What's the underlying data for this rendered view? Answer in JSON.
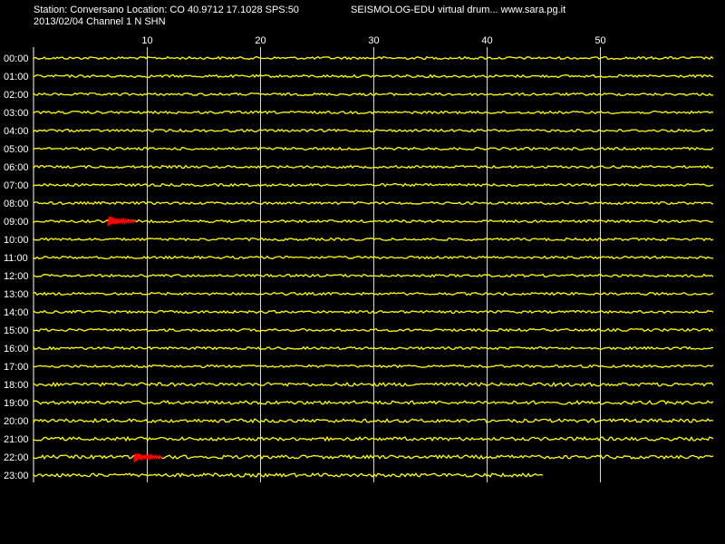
{
  "header": {
    "station_line": "Station: Conversano Location: CO 40.9712 17.1028 SPS:50",
    "date_line": "2013/02/04  Channel 1 N SHN",
    "brand_line": "SEISMOLOG-EDU virtual drum... www.sara.pg.it"
  },
  "colors": {
    "background": "#000000",
    "trace": "#ffff00",
    "event": "#ff0000",
    "grid": "#ffffff",
    "text": "#ffffff"
  },
  "chart_data": {
    "type": "line",
    "title": "",
    "xlabel": "",
    "ylabel": "",
    "x_range": [
      0,
      60
    ],
    "x_ticks": [
      10,
      20,
      30,
      40,
      50
    ],
    "grid": true,
    "rows": [
      "00:00",
      "01:00",
      "02:00",
      "03:00",
      "04:00",
      "05:00",
      "06:00",
      "07:00",
      "08:00",
      "09:00",
      "10:00",
      "11:00",
      "12:00",
      "13:00",
      "14:00",
      "15:00",
      "16:00",
      "17:00",
      "18:00",
      "19:00",
      "20:00",
      "21:00",
      "22:00",
      "23:00"
    ],
    "trace_end_minute": [
      60,
      60,
      60,
      60,
      60,
      60,
      60,
      60,
      60,
      60,
      60,
      60,
      60,
      60,
      60,
      60,
      60,
      60,
      60,
      60,
      60,
      60,
      60,
      45
    ],
    "events": [
      {
        "row": "09:00",
        "start_minute": 6.6,
        "end_minute": 9.0
      },
      {
        "row": "22:00",
        "start_minute": 8.9,
        "end_minute": 11.3
      }
    ]
  }
}
